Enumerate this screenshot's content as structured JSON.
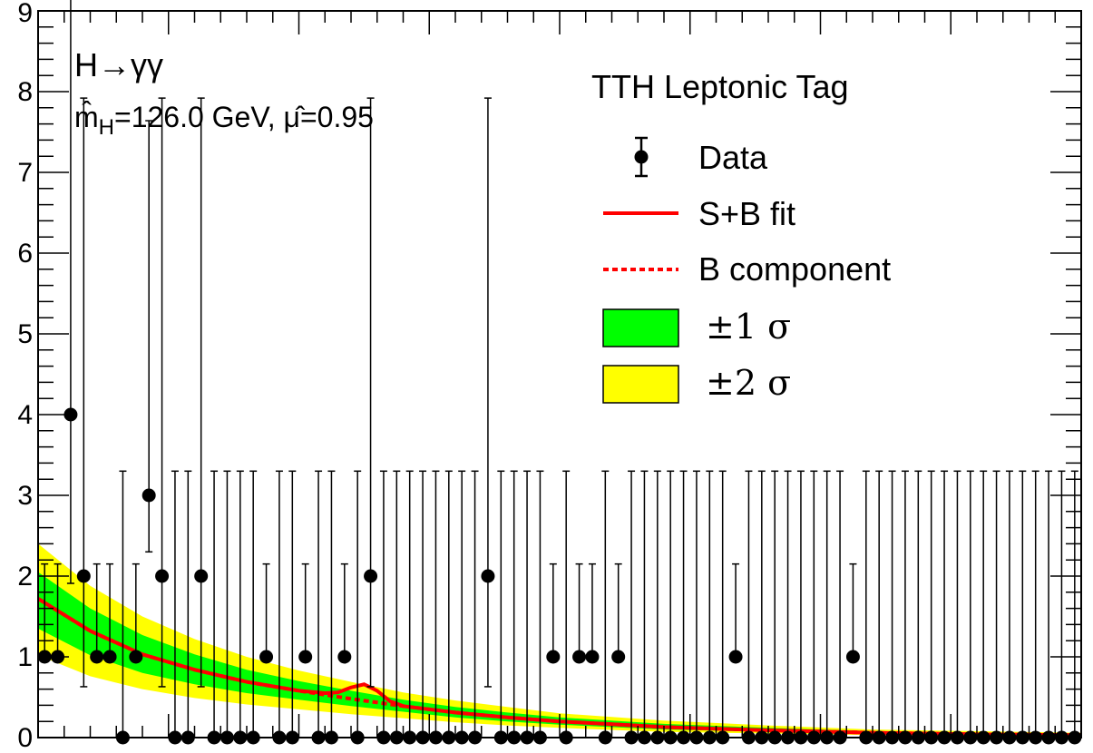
{
  "chart_data": {
    "type": "scatter",
    "title": "",
    "xlabel": "",
    "ylabel": "",
    "x_range": [
      0,
      80
    ],
    "ylim": [
      0,
      9
    ],
    "y_ticks": [
      "0",
      "1",
      "2",
      "3",
      "4",
      "5",
      "6",
      "7",
      "8",
      "9"
    ],
    "grid": false,
    "process_label": "H→γγ",
    "fit_info": "m̂H=126.0 GeV, μ̂=0.95",
    "fit_info_parts": {
      "m_hat": "m̂",
      "m_sub": "H",
      "m_value": "=126.0 GeV, ",
      "mu_hat": "μ̂",
      "mu_value": "=0.95"
    },
    "category_label": "TTH Leptonic Tag",
    "legend": {
      "placement": "top-right",
      "entries": [
        {
          "key": "data",
          "label": "Data"
        },
        {
          "key": "sb_fit",
          "label": "S+B fit"
        },
        {
          "key": "b_component",
          "label": "B component"
        },
        {
          "key": "one_sigma",
          "label": "±1 σ"
        },
        {
          "key": "two_sigma",
          "label": "±2 σ"
        }
      ]
    },
    "colors": {
      "sb_fit": "#ff0000",
      "b_component": "#ff0000",
      "one_sigma": "#00ff00",
      "two_sigma": "#ffff00",
      "data": "#000000"
    },
    "data_points": {
      "x": [
        0.5,
        1.5,
        2.5,
        3.5,
        4.5,
        5.5,
        6.5,
        7.5,
        8.5,
        9.5,
        10.5,
        11.5,
        12.5,
        13.5,
        14.5,
        15.5,
        16.5,
        17.5,
        18.5,
        19.5,
        20.5,
        21.5,
        22.5,
        23.5,
        24.5,
        25.5,
        26.5,
        27.5,
        28.5,
        29.5,
        30.5,
        31.5,
        32.5,
        33.5,
        34.5,
        35.5,
        36.5,
        37.5,
        38.5,
        39.5,
        40.5,
        41.5,
        42.5,
        43.5,
        44.5,
        45.5,
        46.5,
        47.5,
        48.5,
        49.5,
        50.5,
        51.5,
        52.5,
        53.5,
        54.5,
        55.5,
        56.5,
        57.5,
        58.5,
        59.5,
        60.5,
        61.5,
        62.5,
        63.5,
        64.5,
        65.5,
        66.5,
        67.5,
        68.5,
        69.5,
        70.5,
        71.5,
        72.5,
        73.5,
        74.5,
        75.5,
        76.5,
        77.5,
        78.5,
        79.5
      ],
      "y": [
        1,
        1,
        4,
        2,
        1,
        1,
        0,
        1,
        3,
        2,
        0,
        0,
        2,
        0,
        0,
        0,
        0,
        1,
        0,
        0,
        1,
        0,
        0,
        1,
        0,
        2,
        0,
        0,
        0,
        0,
        0,
        0,
        0,
        0,
        2,
        0,
        0,
        0,
        0,
        1,
        0,
        1,
        1,
        0,
        1,
        0,
        0,
        0,
        0,
        0,
        0,
        0,
        0,
        1,
        0,
        0,
        0,
        0,
        0,
        0,
        0,
        0,
        1,
        0,
        0,
        0,
        0,
        0,
        0,
        0,
        0,
        0,
        0,
        0,
        0,
        0,
        0,
        0,
        0,
        0
      ]
    },
    "error_bars": {
      "0": [
        0.17,
        3.3
      ],
      "1": [
        0,
        1.15
      ],
      "2": [
        1.37,
        5.92
      ],
      "3": [
        0.7,
        4.64
      ],
      "4": [
        2.09,
        7.16
      ]
    },
    "sb_fit": {
      "x": [
        0,
        4,
        8,
        12,
        16,
        20,
        22,
        23,
        24,
        25,
        26,
        27,
        28,
        32,
        36,
        40,
        48,
        56,
        64,
        72,
        80
      ],
      "y": [
        1.72,
        1.32,
        1.03,
        0.84,
        0.69,
        0.58,
        0.55,
        0.56,
        0.62,
        0.66,
        0.58,
        0.45,
        0.39,
        0.31,
        0.25,
        0.2,
        0.13,
        0.09,
        0.06,
        0.04,
        0.03
      ]
    },
    "b_component": {
      "x": [
        0,
        4,
        8,
        12,
        16,
        20,
        24,
        28,
        32,
        36,
        40,
        48,
        56,
        64,
        72,
        80
      ],
      "y": [
        1.72,
        1.32,
        1.03,
        0.84,
        0.69,
        0.58,
        0.48,
        0.39,
        0.31,
        0.25,
        0.2,
        0.13,
        0.09,
        0.06,
        0.04,
        0.03
      ]
    },
    "band_1sigma": {
      "x": [
        0,
        4,
        8,
        12,
        16,
        20,
        24,
        28,
        32,
        36,
        40,
        48,
        56,
        64,
        72,
        80
      ],
      "lower": [
        1.35,
        1.02,
        0.8,
        0.66,
        0.55,
        0.47,
        0.39,
        0.32,
        0.25,
        0.2,
        0.16,
        0.1,
        0.07,
        0.04,
        0.03,
        0.02
      ],
      "upper": [
        2.05,
        1.6,
        1.27,
        1.03,
        0.84,
        0.7,
        0.58,
        0.47,
        0.38,
        0.31,
        0.25,
        0.17,
        0.12,
        0.08,
        0.06,
        0.05
      ]
    },
    "band_2sigma": {
      "x": [
        0,
        4,
        8,
        12,
        16,
        20,
        24,
        28,
        32,
        36,
        40,
        48,
        56,
        64,
        72,
        80
      ],
      "lower": [
        1.02,
        0.76,
        0.6,
        0.49,
        0.41,
        0.35,
        0.29,
        0.24,
        0.19,
        0.15,
        0.12,
        0.07,
        0.05,
        0.03,
        0.02,
        0.01
      ],
      "upper": [
        2.4,
        1.88,
        1.5,
        1.22,
        1.0,
        0.83,
        0.69,
        0.56,
        0.46,
        0.38,
        0.3,
        0.21,
        0.15,
        0.1,
        0.08,
        0.06
      ]
    }
  }
}
